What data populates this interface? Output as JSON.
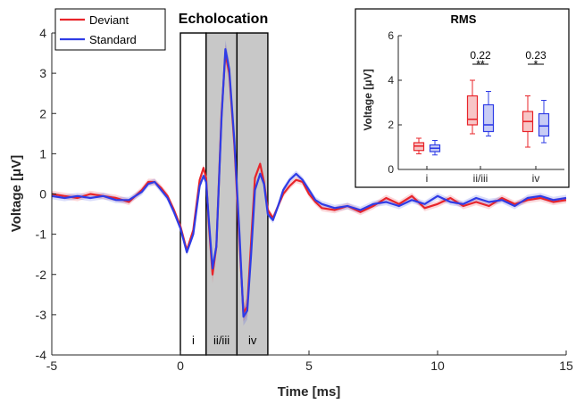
{
  "chart_data": [
    {
      "type": "line",
      "title": "Echolocation",
      "xlabel": "Time [ms]",
      "ylabel": "Voltage [μV]",
      "xlim": [
        -5,
        15
      ],
      "ylim": [
        -4,
        4
      ],
      "xticks": [
        -5,
        0,
        5,
        10,
        15
      ],
      "yticks": [
        -4,
        -3,
        -2,
        -1,
        0,
        1,
        2,
        3,
        4
      ],
      "legend": {
        "placement": "top-left",
        "entries": [
          "Deviant",
          "Standard"
        ]
      },
      "colors": {
        "Deviant": "#e8242a",
        "Standard": "#2f3ce6"
      },
      "windows": [
        {
          "label": "i",
          "start": 0.0,
          "end": 1.0,
          "shaded": false
        },
        {
          "label": "ii/iii",
          "start": 1.0,
          "end": 2.2,
          "shaded": true
        },
        {
          "label": "iv",
          "start": 2.2,
          "end": 3.4,
          "shaded": true
        }
      ],
      "series": [
        {
          "name": "Deviant",
          "x": [
            -5,
            -4.5,
            -4,
            -3.5,
            -3,
            -2.5,
            -2,
            -1.5,
            -1.25,
            -1,
            -0.75,
            -0.5,
            -0.25,
            0,
            0.25,
            0.5,
            0.75,
            0.9,
            1.0,
            1.1,
            1.25,
            1.4,
            1.6,
            1.75,
            1.9,
            2.1,
            2.3,
            2.45,
            2.6,
            2.75,
            2.9,
            3.1,
            3.25,
            3.4,
            3.6,
            3.8,
            4.0,
            4.25,
            4.5,
            4.75,
            5.0,
            5.25,
            5.5,
            6.0,
            6.5,
            7.0,
            7.5,
            8.0,
            8.5,
            9.0,
            9.5,
            10.0,
            10.5,
            11.0,
            11.5,
            12.0,
            12.5,
            13.0,
            13.5,
            14.0,
            14.5,
            15.0
          ],
          "y": [
            0.0,
            -0.05,
            -0.1,
            0.0,
            -0.05,
            -0.1,
            -0.2,
            0.1,
            0.3,
            0.3,
            0.15,
            -0.05,
            -0.4,
            -0.8,
            -1.4,
            -0.9,
            0.35,
            0.65,
            0.4,
            -0.7,
            -2.0,
            -1.3,
            2.0,
            3.5,
            3.0,
            1.2,
            -1.2,
            -2.95,
            -2.8,
            -1.2,
            0.4,
            0.75,
            0.3,
            -0.4,
            -0.6,
            -0.3,
            0.0,
            0.2,
            0.35,
            0.3,
            0.0,
            -0.2,
            -0.35,
            -0.4,
            -0.3,
            -0.45,
            -0.3,
            -0.1,
            -0.25,
            -0.05,
            -0.35,
            -0.25,
            -0.1,
            -0.3,
            -0.2,
            -0.3,
            -0.1,
            -0.25,
            -0.15,
            -0.1,
            -0.2,
            -0.15
          ]
        },
        {
          "name": "Standard",
          "x": [
            -5,
            -4.5,
            -4,
            -3.5,
            -3,
            -2.5,
            -2,
            -1.5,
            -1.25,
            -1,
            -0.75,
            -0.5,
            -0.25,
            0,
            0.25,
            0.5,
            0.75,
            0.9,
            1.0,
            1.1,
            1.25,
            1.4,
            1.6,
            1.75,
            1.9,
            2.1,
            2.3,
            2.45,
            2.6,
            2.75,
            2.9,
            3.1,
            3.25,
            3.4,
            3.6,
            3.8,
            4.0,
            4.25,
            4.5,
            4.75,
            5.0,
            5.25,
            5.5,
            6.0,
            6.5,
            7.0,
            7.5,
            8.0,
            8.5,
            9.0,
            9.5,
            10.0,
            10.5,
            11.0,
            11.5,
            12.0,
            12.5,
            13.0,
            13.5,
            14.0,
            14.5,
            15.0
          ],
          "y": [
            -0.05,
            -0.1,
            -0.05,
            -0.1,
            -0.05,
            -0.15,
            -0.15,
            0.05,
            0.25,
            0.3,
            0.1,
            -0.1,
            -0.45,
            -0.85,
            -1.45,
            -1.0,
            0.2,
            0.45,
            0.3,
            -0.6,
            -1.85,
            -1.3,
            1.9,
            3.6,
            3.1,
            1.3,
            -1.0,
            -3.05,
            -2.9,
            -1.5,
            0.1,
            0.5,
            0.25,
            -0.5,
            -0.65,
            -0.3,
            0.1,
            0.35,
            0.5,
            0.35,
            0.1,
            -0.15,
            -0.25,
            -0.35,
            -0.3,
            -0.4,
            -0.25,
            -0.2,
            -0.3,
            -0.15,
            -0.25,
            -0.05,
            -0.2,
            -0.25,
            -0.1,
            -0.2,
            -0.15,
            -0.3,
            -0.1,
            -0.05,
            -0.15,
            -0.1
          ]
        }
      ]
    },
    {
      "type": "box",
      "title": "RMS",
      "ylabel": "Voltage [μV]",
      "ylim": [
        0,
        6
      ],
      "yticks": [
        0,
        2,
        4,
        6
      ],
      "categories": [
        "i",
        "ii/iii",
        "iv"
      ],
      "series": [
        {
          "name": "Deviant",
          "boxes": [
            {
              "min": 0.7,
              "q1": 0.85,
              "median": 1.05,
              "q3": 1.2,
              "max": 1.4
            },
            {
              "min": 1.6,
              "q1": 2.0,
              "median": 2.25,
              "q3": 3.3,
              "max": 4.0
            },
            {
              "min": 1.0,
              "q1": 1.7,
              "median": 2.15,
              "q3": 2.6,
              "max": 3.3
            }
          ]
        },
        {
          "name": "Standard",
          "boxes": [
            {
              "min": 0.65,
              "q1": 0.8,
              "median": 0.95,
              "q3": 1.1,
              "max": 1.3
            },
            {
              "min": 1.5,
              "q1": 1.7,
              "median": 2.0,
              "q3": 2.9,
              "max": 3.5
            },
            {
              "min": 1.2,
              "q1": 1.5,
              "median": 1.95,
              "q3": 2.5,
              "max": 3.1
            }
          ]
        }
      ],
      "comparisons": [
        {
          "category": "ii/iii",
          "value": "0.22",
          "stars": "**"
        },
        {
          "category": "iv",
          "value": "0.23",
          "stars": "*"
        }
      ]
    }
  ]
}
